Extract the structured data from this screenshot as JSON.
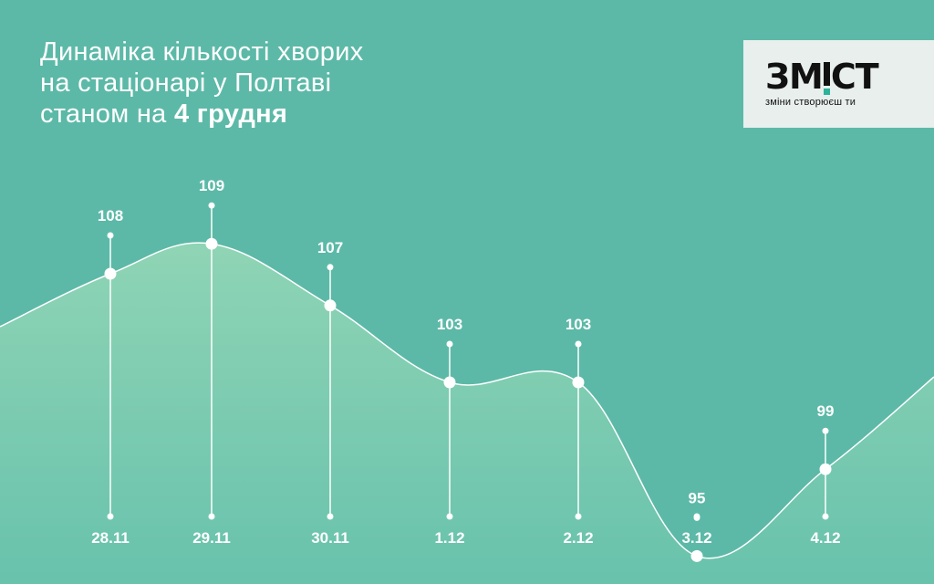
{
  "title": {
    "line1": "Динаміка кількості хворих",
    "line2": "на стаціонарі у Полтаві",
    "line3_prefix": "станом на",
    "line3_bold": "4 грудня"
  },
  "logo": {
    "word_left": "ЗМ",
    "word_right": "СТ",
    "tagline": "зміни створюєш ти"
  },
  "colors": {
    "background": "#5cb9a7",
    "area_top": "#8fd4b5",
    "area_bottom": "#68c2ac",
    "line": "#ffffff",
    "logo_accent": "#2bb39b"
  },
  "chart_data": {
    "type": "area",
    "categories": [
      "28.11",
      "29.11",
      "30.11",
      "1.12",
      "2.12",
      "3.12",
      "4.12"
    ],
    "values": [
      108,
      109,
      107,
      103,
      103,
      95,
      99
    ],
    "title": "Динаміка кількості хворих на стаціонарі у Полтаві станом на 4 грудня",
    "xlabel": "",
    "ylabel": "",
    "grid": false,
    "legend": "none"
  }
}
